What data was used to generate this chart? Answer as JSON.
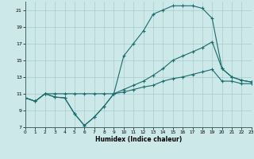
{
  "xlabel": "Humidex (Indice chaleur)",
  "xlim": [
    0,
    23
  ],
  "ylim": [
    7,
    22
  ],
  "yticks": [
    7,
    9,
    11,
    13,
    15,
    17,
    19,
    21
  ],
  "xticks": [
    0,
    1,
    2,
    3,
    4,
    5,
    6,
    7,
    8,
    9,
    10,
    11,
    12,
    13,
    14,
    15,
    16,
    17,
    18,
    19,
    20,
    21,
    22,
    23
  ],
  "bg_color": "#cce8e8",
  "grid_color": "#aacccc",
  "line_color": "#1a6b6b",
  "line1_x": [
    0,
    1,
    2,
    3,
    4,
    5,
    6,
    7,
    8,
    9,
    10,
    11,
    12,
    13,
    14,
    15,
    16,
    17,
    18,
    19,
    20,
    21,
    22,
    23
  ],
  "line1_y": [
    10.5,
    10.1,
    11.0,
    10.6,
    10.5,
    8.6,
    7.2,
    8.2,
    9.5,
    11.0,
    11.5,
    12.0,
    12.5,
    13.2,
    14.0,
    15.0,
    15.5,
    16.0,
    16.5,
    17.2,
    14.0,
    13.0,
    12.6,
    12.4
  ],
  "line2_x": [
    0,
    1,
    2,
    3,
    4,
    5,
    6,
    7,
    8,
    9,
    10,
    11,
    12,
    13,
    14,
    15,
    16,
    17,
    18,
    19,
    20,
    21,
    22,
    23
  ],
  "line2_y": [
    10.5,
    10.1,
    11.0,
    10.6,
    10.5,
    8.6,
    7.2,
    8.2,
    9.5,
    11.0,
    15.5,
    17.0,
    18.5,
    20.5,
    21.0,
    21.5,
    21.5,
    21.5,
    21.2,
    20.0,
    14.0,
    13.0,
    12.6,
    12.4
  ],
  "line3_x": [
    0,
    1,
    2,
    3,
    4,
    5,
    6,
    7,
    8,
    9,
    10,
    11,
    12,
    13,
    14,
    15,
    16,
    17,
    18,
    19,
    20,
    21,
    22,
    23
  ],
  "line3_y": [
    10.5,
    10.1,
    11.0,
    11.0,
    11.0,
    11.0,
    11.0,
    11.0,
    11.0,
    11.0,
    11.2,
    11.5,
    11.8,
    12.0,
    12.5,
    12.8,
    13.0,
    13.3,
    13.6,
    13.9,
    12.5,
    12.5,
    12.2,
    12.2
  ]
}
